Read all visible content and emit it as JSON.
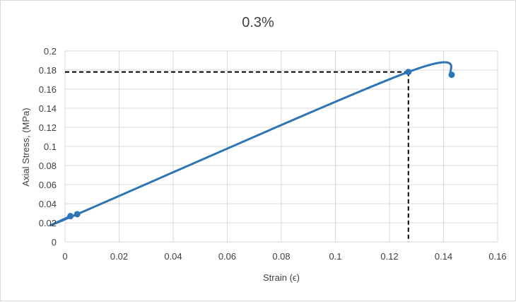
{
  "chart_data": {
    "type": "scatter",
    "title": "0.3%",
    "xlabel": "Strain (ϵ)",
    "ylabel": "Axial Stress,  (MPa)",
    "xlim": [
      0,
      0.16
    ],
    "ylim": [
      0,
      0.2
    ],
    "x_ticks": [
      "0",
      "0.02",
      "0.04",
      "0.06",
      "0.08",
      "0.1",
      "0.12",
      "0.14",
      "0.16"
    ],
    "y_ticks": [
      "0",
      "0.02",
      "0.04",
      "0.06",
      "0.08",
      "0.1",
      "0.12",
      "0.14",
      "0.16",
      "0.18",
      "0.2"
    ],
    "grid": true,
    "legend": "none",
    "series": [
      {
        "color": "#2e75b6",
        "smooth": true,
        "points": [
          {
            "x": 0.002,
            "y": 0.027
          },
          {
            "x": 0.0045,
            "y": 0.029
          },
          {
            "x": 0.127,
            "y": 0.178
          },
          {
            "x": 0.143,
            "y": 0.175
          }
        ]
      }
    ],
    "reference_lines": {
      "color": "#000000",
      "style": "dashed",
      "x": 0.127,
      "y": 0.178
    }
  }
}
